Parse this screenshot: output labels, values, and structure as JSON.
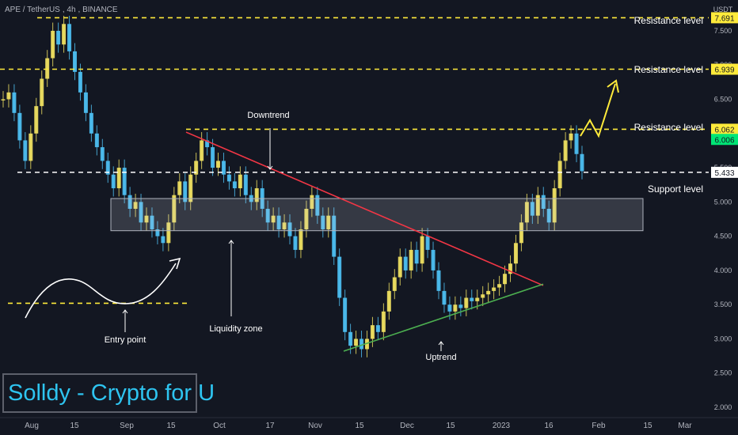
{
  "header": {
    "symbol": "APE / TetherUS",
    "interval": "4h",
    "exchange": "BINANCE",
    "currency": "USDT"
  },
  "watermark": "Solldy - Crypto for U",
  "chart_data": {
    "type": "candlestick",
    "currency": "USDT",
    "grid": false,
    "x_ticks": [
      "Aug",
      "15",
      "Sep",
      "15",
      "Oct",
      "17",
      "Nov",
      "15",
      "Dec",
      "15",
      "2023",
      "16",
      "Feb",
      "15",
      "Mar"
    ],
    "y_ticks": [
      2.0,
      2.5,
      3.0,
      3.5,
      4.0,
      4.5,
      5.0,
      5.5,
      6.0,
      6.5,
      7.0,
      7.5
    ],
    "ylim": [
      1.85,
      7.95
    ],
    "series_close_approx": [
      6.5,
      6.6,
      6.3,
      5.9,
      5.6,
      6.0,
      6.4,
      6.8,
      7.1,
      7.5,
      7.3,
      7.6,
      7.2,
      6.9,
      6.6,
      6.3,
      6.0,
      5.8,
      5.6,
      5.4,
      5.2,
      5.5,
      5.1,
      4.9,
      5.0,
      4.7,
      4.8,
      4.6,
      4.5,
      4.4,
      4.7,
      5.1,
      5.3,
      5.0,
      5.4,
      5.6,
      5.9,
      5.8,
      5.5,
      5.6,
      5.4,
      5.3,
      5.2,
      5.4,
      5.1,
      5.0,
      5.2,
      4.9,
      4.7,
      4.8,
      4.6,
      4.7,
      4.5,
      4.3,
      4.6,
      4.9,
      5.1,
      4.8,
      4.6,
      4.8,
      4.2,
      3.6,
      3.1,
      2.9,
      3.0,
      2.85,
      3.0,
      3.2,
      3.1,
      3.4,
      3.7,
      3.9,
      4.2,
      4.0,
      4.3,
      4.1,
      4.5,
      4.3,
      4.0,
      3.7,
      3.5,
      3.4,
      3.5,
      3.45,
      3.6,
      3.55,
      3.6,
      3.65,
      3.7,
      3.75,
      3.8,
      3.95,
      4.1,
      4.4,
      4.7,
      5.0,
      4.8,
      5.1,
      4.9,
      4.7,
      5.2,
      5.6,
      5.9,
      6.0,
      5.7,
      5.45
    ],
    "last_price": 6.006,
    "levels": [
      {
        "label": "Resistance level",
        "value": 7.691,
        "value_text": "7.691",
        "color": "#ffeb3b"
      },
      {
        "label": "Resistance level",
        "value": 6.939,
        "value_text": "6.939",
        "color": "#ffeb3b"
      },
      {
        "label": "Resistance level",
        "value": 6.062,
        "value_text": "6.062",
        "color": "#ffeb3b"
      },
      {
        "label": "Support level",
        "value": 5.433,
        "value_text": "5.433",
        "color": "#ffffff"
      },
      {
        "label": "",
        "value": 3.52,
        "value_text": "",
        "color": "#ffeb3b"
      }
    ],
    "last_price_text": "6.006",
    "last_price_color": "#00e676",
    "zone": {
      "label": "Liquidity zone",
      "top": 5.05,
      "bottom": 4.58
    },
    "downtrend": {
      "label": "Downtrend",
      "from": 6.02,
      "to": 3.78,
      "color": "#f23645"
    },
    "uptrend": {
      "label": "Uptrend",
      "from": 2.82,
      "to": 3.8,
      "color": "#4caf50"
    },
    "annotations": [
      {
        "label": "Entry point"
      },
      {
        "label": "Liquidity zone"
      },
      {
        "label": "Downtrend"
      },
      {
        "label": "Uptrend"
      }
    ]
  }
}
